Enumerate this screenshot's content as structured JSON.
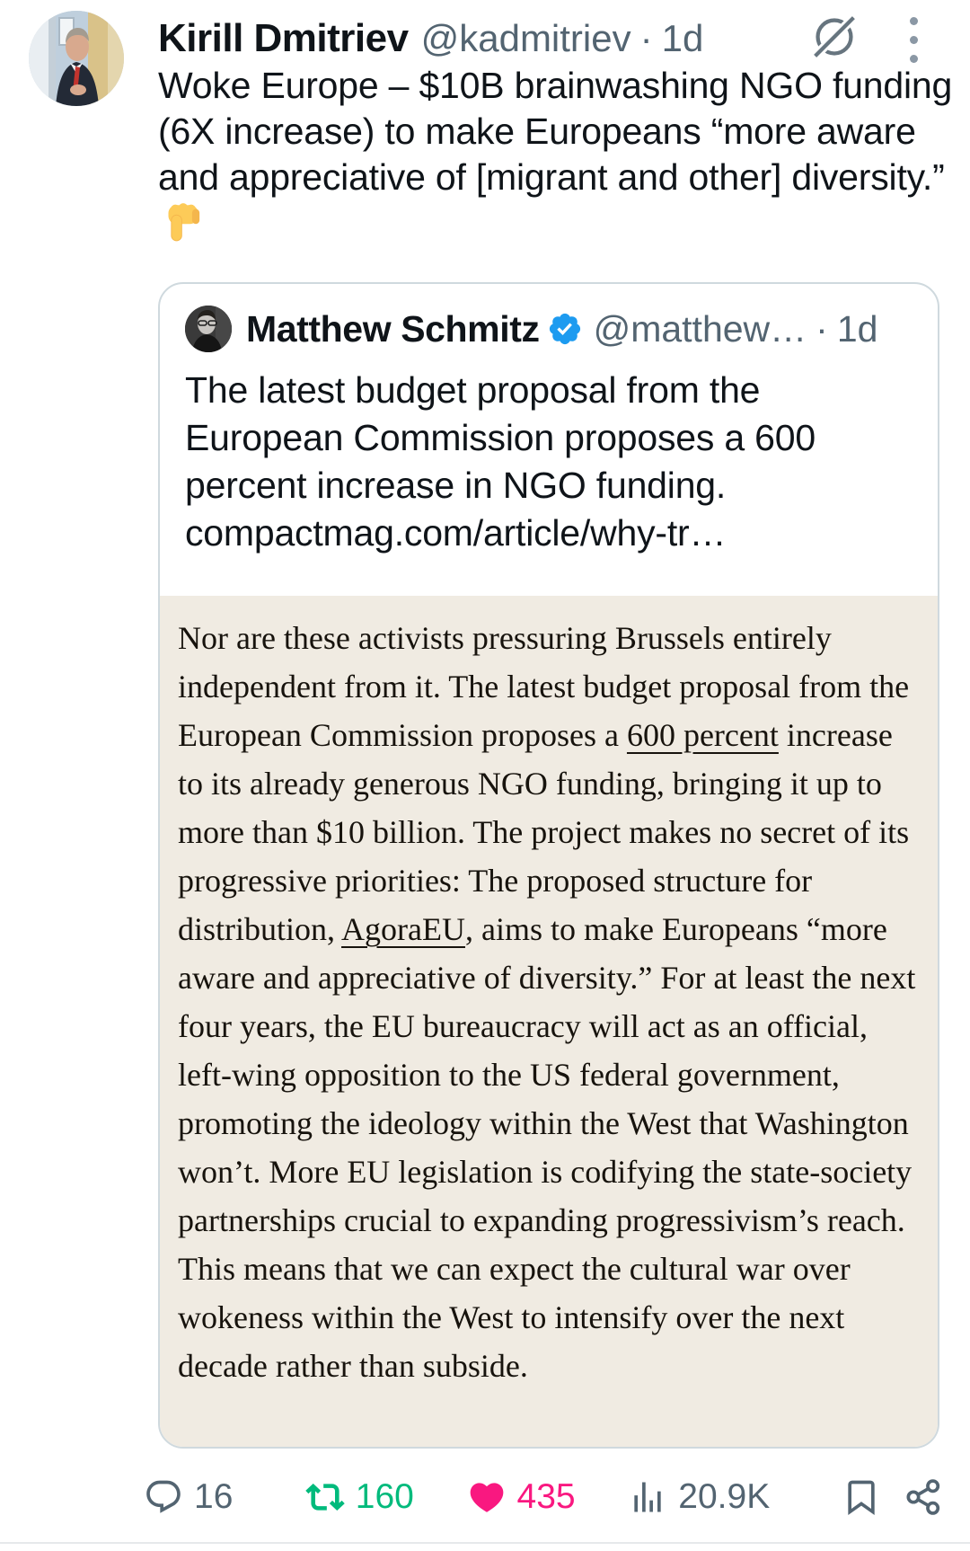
{
  "colors": {
    "text_primary": "#0f1419",
    "text_secondary": "#536471",
    "verified_blue": "#1d9bf0",
    "repost_green": "#00ba7c",
    "like_pink": "#f91880",
    "card_border": "#cfd9de",
    "article_background": "#f0ebe2"
  },
  "tweet": {
    "author_name": "Kirill Dmitriev",
    "author_handle": "@kadmitriev",
    "separator": "·",
    "timestamp": "1d",
    "body": "Woke Europe – $10B brainwashing NGO funding (6X increase) to make Europeans “more aware and appreciative of [migrant and other] diversity.”",
    "body_emoji": "👇",
    "body_emoji_name": "backhand-index-pointing-down"
  },
  "quote": {
    "author_name": "Matthew Schmitz",
    "author_handle": "@matthew…",
    "separator": "·",
    "timestamp": "1d",
    "verified": true,
    "body": "The latest budget proposal from the European Commission proposes a 600 percent increase in NGO funding.",
    "link": "compactmag.com/article/why-tr…"
  },
  "article": {
    "segments": [
      {
        "text": "Nor are these activists pressuring Brussels entirely independent from it. The latest budget proposal from the European Commission proposes a ",
        "link": false
      },
      {
        "text": "600 percent",
        "link": true
      },
      {
        "text": " increase to its already generous NGO funding, bringing it up to more than $10 billion. The project makes no secret of its progressive priorities: The proposed structure for distribution, ",
        "link": false
      },
      {
        "text": "AgoraEU",
        "link": true
      },
      {
        "text": ", aims to make Europeans “more aware and appreciative of diversity.” For at least the next four years, the EU bureaucracy will act as an official, left-wing opposition to the US federal government, promoting the ideology within the West that Washington won’t. More EU legislation is codifying the state-society partnerships crucial to expanding progressivism’s reach. This means that we can expect the cultural war over wokeness within the West to intensify over the next decade rather than subside.",
        "link": false
      }
    ]
  },
  "actions": {
    "reply_count": "16",
    "repost_count": "160",
    "like_count": "435",
    "view_count": "20.9K",
    "liked": true
  },
  "icons": {
    "top_right": [
      "grok-icon",
      "more-vertical-icon"
    ],
    "action_bar": [
      "reply-icon",
      "repost-icon",
      "heart-filled-icon",
      "views-bars-icon",
      "bookmark-icon",
      "share-nodes-icon"
    ],
    "badge": "verified-badge-icon"
  }
}
